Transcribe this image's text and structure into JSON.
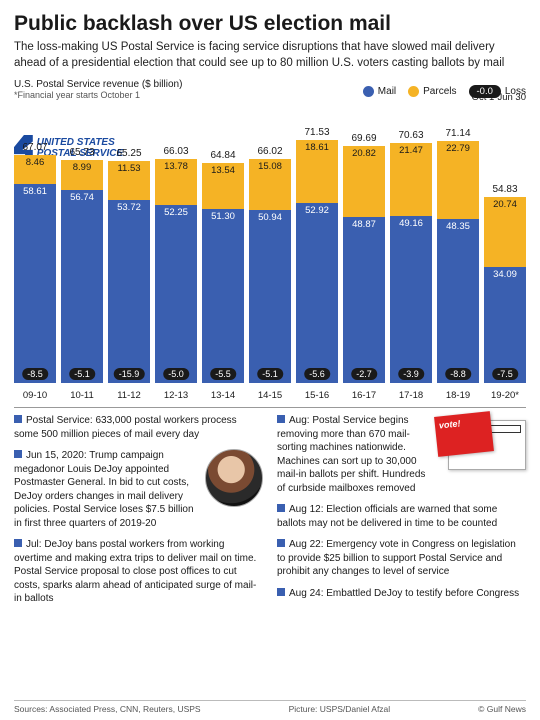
{
  "title": "Public backlash over US election mail",
  "subtitle": "The loss-making US Postal Service is facing service disruptions that have slowed mail delivery ahead of a presidential election that could see up to 80 million U.S. voters casting ballots by mail",
  "chart": {
    "type": "stacked-bar",
    "metric_label": "U.S. Postal Service revenue ($ billion)",
    "footnote": "*Financial year starts October 1",
    "date_range": "Oct 1-Jun 30",
    "logo_text": "UNITED STATES POSTAL SERVICE",
    "legend": {
      "mail": "Mail",
      "parcels": "Parcels",
      "loss": "Loss",
      "loss_sample": "-0.0"
    },
    "colors": {
      "mail": "#3a5fb0",
      "parcels": "#f5b325",
      "loss_bg": "#1a1a1a",
      "grid": "#ffffff",
      "text": "#1a1a1a"
    },
    "y_max": 75,
    "bar_width": 1,
    "series": [
      {
        "year": "09-10",
        "total": 67.07,
        "parcels": 8.46,
        "mail": 58.61,
        "loss": -8.5
      },
      {
        "year": "10-11",
        "total": 65.73,
        "parcels": 8.99,
        "mail": 56.74,
        "loss": -5.1
      },
      {
        "year": "11-12",
        "total": 65.25,
        "parcels": 11.53,
        "mail": 53.72,
        "loss": -15.9
      },
      {
        "year": "12-13",
        "total": 66.03,
        "parcels": 13.78,
        "mail": 52.25,
        "loss": -5.0
      },
      {
        "year": "13-14",
        "total": 64.84,
        "parcels": 13.54,
        "mail": 51.3,
        "loss": -5.5
      },
      {
        "year": "14-15",
        "total": 66.02,
        "parcels": 15.08,
        "mail": 50.94,
        "loss": -5.1
      },
      {
        "year": "15-16",
        "total": 71.53,
        "parcels": 18.61,
        "mail": 52.92,
        "loss": -5.6
      },
      {
        "year": "16-17",
        "total": 69.69,
        "parcels": 20.82,
        "mail": 48.87,
        "loss": -2.7
      },
      {
        "year": "17-18",
        "total": 70.63,
        "parcels": 21.47,
        "mail": 49.16,
        "loss": -3.9
      },
      {
        "year": "18-19",
        "total": 71.14,
        "parcels": 22.79,
        "mail": 48.35,
        "loss": -8.8
      },
      {
        "year": "19-20*",
        "total": 54.83,
        "parcels": 20.74,
        "mail": 34.09,
        "loss": -7.5
      }
    ]
  },
  "bullets": {
    "col1": [
      "Postal Service: 633,000 postal workers process some 500 million pieces of mail every day",
      "Jun 15, 2020: Trump campaign megadonor Louis DeJoy appointed Postmaster General. In bid to cut costs, DeJoy orders changes in mail delivery policies. Postal Service loses $7.5 billion in first three quarters of 2019-20",
      "Jul: DeJoy bans postal workers from working overtime and making extra trips to deliver mail on time. Postal Service proposal to close post offices to cut costs, sparks alarm ahead of anticipated surge of mail-in ballots"
    ],
    "col2": [
      "Aug: Postal Service begins removing more than 670 mail-sorting machines nationwide. Machines can sort up to 30,000 mail-in ballots per shift. Hundreds of curbside mailboxes removed",
      "Aug 12: Election officials are warned that some ballots may not be delivered in time to be counted",
      "Aug 22: Emergency vote in Congress on legislation to provide $25 billion to support Postal Service and prohibit any changes to level of service",
      "Aug 24: Embattled DeJoy to testify before Congress"
    ],
    "envelope_label": "vote!"
  },
  "footer": {
    "sources": "Sources: Associated Press, CNN, Reuters, USPS",
    "picture": "Picture: USPS/Daniel Afzal",
    "credit": "© Gulf News"
  }
}
